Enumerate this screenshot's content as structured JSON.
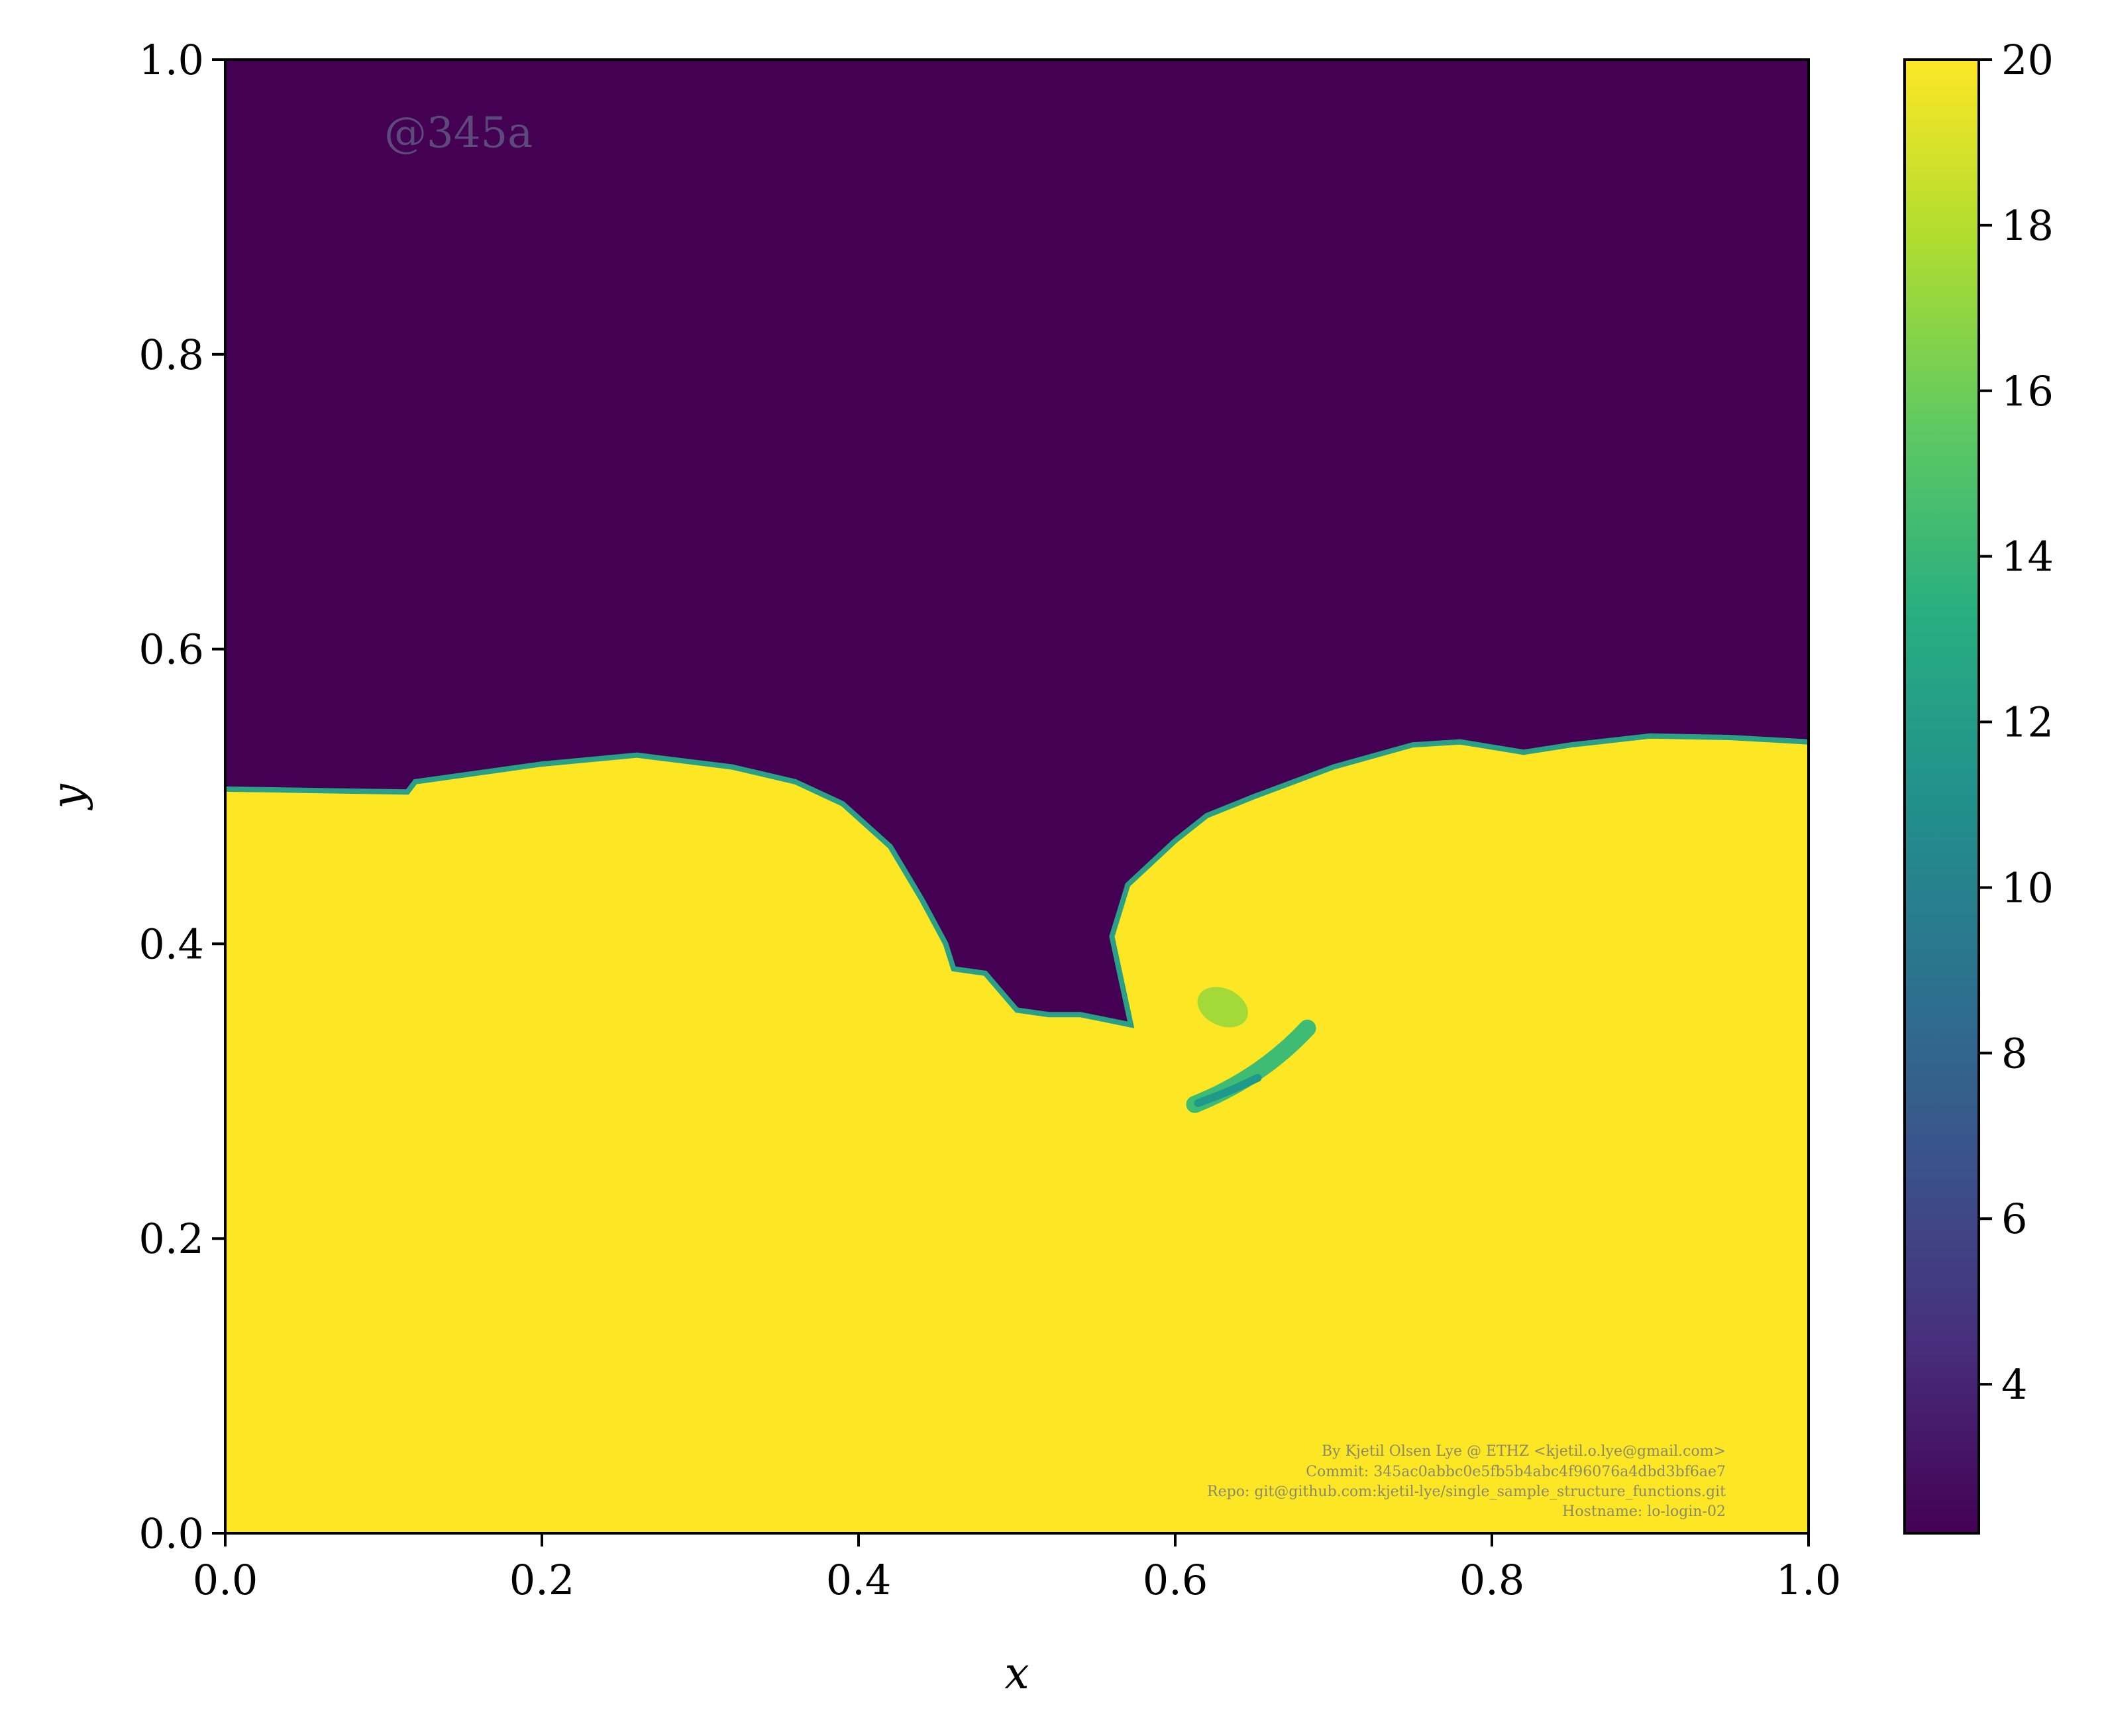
{
  "chart_data": {
    "type": "heatmap",
    "title": "",
    "xlabel": "x",
    "ylabel": "y",
    "xlim": [
      0.0,
      1.0
    ],
    "ylim": [
      0.0,
      1.0
    ],
    "xticks": [
      "0.0",
      "0.2",
      "0.4",
      "0.6",
      "0.8",
      "1.0"
    ],
    "yticks": [
      "0.0",
      "0.2",
      "0.4",
      "0.6",
      "0.8",
      "1.0"
    ],
    "colormap": "viridis",
    "colorbar": {
      "range": [
        2.2,
        20
      ],
      "ticks": [
        "4",
        "6",
        "8",
        "10",
        "12",
        "14",
        "16",
        "18",
        "20"
      ]
    },
    "low_value_color": "#440154",
    "high_value_color": "#fde725",
    "interface": {
      "description_values": "y-position of the boundary between the low-value (top) and high-value (bottom) regions",
      "x": [
        0.0,
        0.115,
        0.12,
        0.2,
        0.26,
        0.32,
        0.36,
        0.39,
        0.42,
        0.44,
        0.455,
        0.46,
        0.48,
        0.5,
        0.52,
        0.54,
        0.572,
        0.565,
        0.56,
        0.57,
        0.6,
        0.62,
        0.65,
        0.7,
        0.75,
        0.78,
        0.82,
        0.85,
        0.9,
        0.95,
        1.0
      ],
      "y": [
        0.505,
        0.503,
        0.51,
        0.522,
        0.528,
        0.52,
        0.51,
        0.495,
        0.466,
        0.43,
        0.4,
        0.383,
        0.38,
        0.355,
        0.352,
        0.352,
        0.345,
        0.38,
        0.405,
        0.44,
        0.47,
        0.487,
        0.5,
        0.52,
        0.535,
        0.537,
        0.53,
        0.535,
        0.541,
        0.54,
        0.537
      ]
    },
    "features": [
      {
        "name": "upper blob",
        "x": 0.63,
        "y": 0.357,
        "value": 17.5
      },
      {
        "name": "lower streak",
        "x": 0.65,
        "y": 0.318,
        "value": 13
      }
    ]
  },
  "annotations": {
    "watermark": "@345a",
    "credits": [
      "By Kjetil Olsen Lye @ ETHZ <kjetil.o.lye@gmail.com>",
      "Commit: 345ac0abbc0e5fb5b4abc4f96076a4dbd3bf6ae7",
      "Repo: git@github.com:kjetil-lye/single_sample_structure_functions.git",
      "Hostname: lo-login-02"
    ]
  }
}
